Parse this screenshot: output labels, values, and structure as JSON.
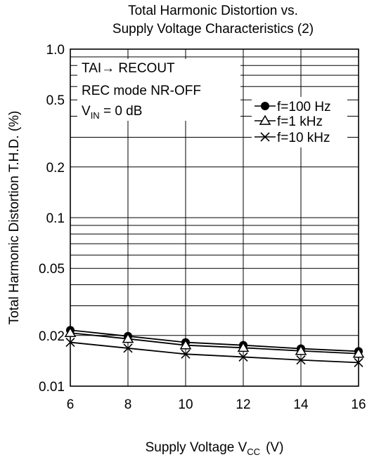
{
  "chart_data": {
    "type": "line",
    "title": [
      "Total Harmonic Distortion vs.",
      "Supply Voltage Characteristics (2)"
    ],
    "xlabel": {
      "main": "Supply Voltage V",
      "sub": "CC",
      "unit": "(V)"
    },
    "ylabel": "Total Harmonic Distortion T.H.D.  (%)",
    "xlim": [
      6,
      16
    ],
    "ylim": [
      0.01,
      1.0
    ],
    "yscale": "log",
    "x_ticks": [
      "6",
      "8",
      "10",
      "12",
      "14",
      "16"
    ],
    "y_tick_labels": [
      {
        "value": 1.0,
        "label": "1.0"
      },
      {
        "value": 0.5,
        "label": "0.5"
      },
      {
        "value": 0.2,
        "label": "0.2"
      },
      {
        "value": 0.1,
        "label": "0.1"
      },
      {
        "value": 0.05,
        "label": "0.05"
      },
      {
        "value": 0.02,
        "label": "0.02"
      },
      {
        "value": 0.01,
        "label": "0.01"
      }
    ],
    "grid": true,
    "annotations": [
      {
        "text": "TAI→ RECOUT"
      },
      {
        "text": "REC mode  NR-OFF"
      },
      {
        "text_main": "V",
        "text_sub": "IN",
        "text_rest": " = 0 dB"
      }
    ],
    "legend_position": "top-right",
    "x": [
      6,
      8,
      10,
      12,
      14,
      16
    ],
    "series": [
      {
        "name": "f=100 Hz",
        "marker": "filled-circle",
        "values": [
          0.0215,
          0.0198,
          0.0182,
          0.0175,
          0.0167,
          0.0161
        ]
      },
      {
        "name": "f=1 kHz",
        "marker": "open-triangle",
        "values": [
          0.0207,
          0.0191,
          0.0175,
          0.0169,
          0.0162,
          0.0156
        ]
      },
      {
        "name": "f=10 kHz",
        "marker": "x",
        "values": [
          0.0182,
          0.0168,
          0.0155,
          0.0149,
          0.0143,
          0.0138
        ]
      }
    ]
  }
}
